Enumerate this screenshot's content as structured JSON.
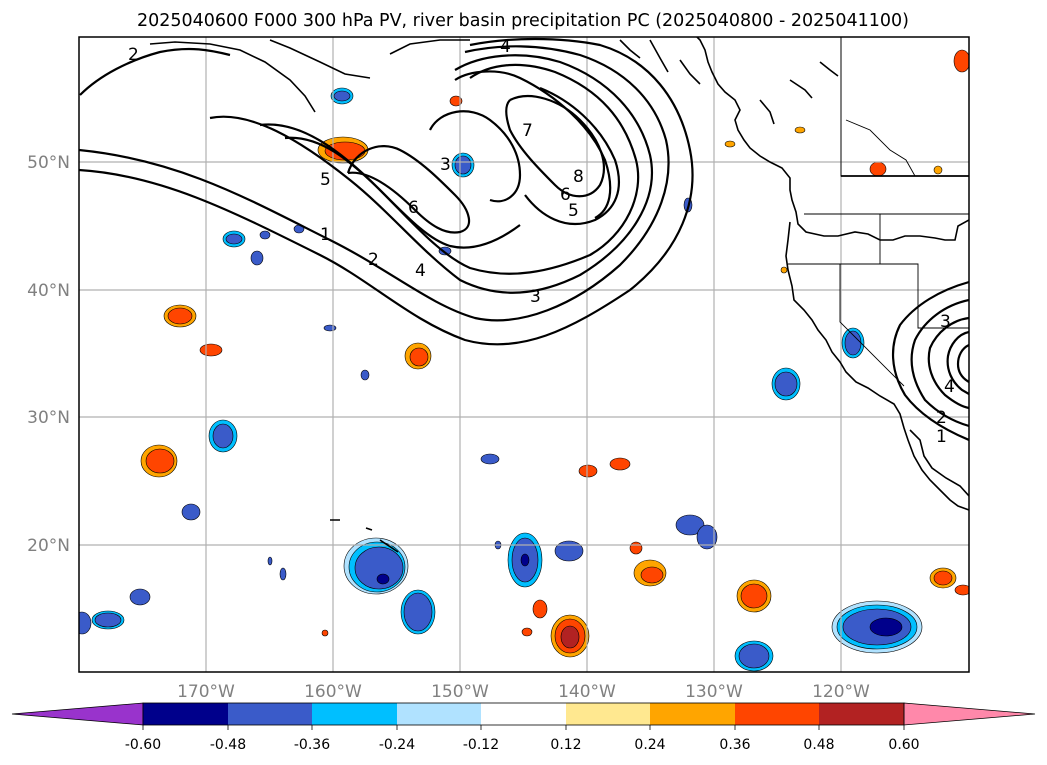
{
  "title": "2025040600 F000 300 hPa PV, river basin precipitation PC (2025040800 - 2025041100)",
  "map": {
    "lon_range": [
      -180,
      -110
    ],
    "lat_range": [
      10,
      60
    ],
    "lat_ticks": [
      {
        "value": 50,
        "label": "50°N"
      },
      {
        "value": 40,
        "label": "40°N"
      },
      {
        "value": 30,
        "label": "30°N"
      },
      {
        "value": 20,
        "label": "20°N"
      }
    ],
    "lon_ticks": [
      {
        "value": -170,
        "label": "170°W"
      },
      {
        "value": -160,
        "label": "160°W"
      },
      {
        "value": -150,
        "label": "150°W"
      },
      {
        "value": -140,
        "label": "140°W"
      },
      {
        "value": -130,
        "label": "130°W"
      },
      {
        "value": -120,
        "label": "120°W"
      }
    ]
  },
  "contour_labels": [
    "2",
    "4",
    "7",
    "8",
    "6",
    "5",
    "3",
    "5",
    "6",
    "1",
    "2",
    "4",
    "3",
    "3",
    "4",
    "2",
    "1"
  ],
  "colorbar": {
    "ticks": [
      "-0.60",
      "-0.48",
      "-0.36",
      "-0.24",
      "-0.12",
      "0.12",
      "0.24",
      "0.36",
      "0.48",
      "0.60"
    ],
    "colors": {
      "under": "#9933cc",
      "bins": [
        "#00008b",
        "#3a5bc9",
        "#00bfff",
        "#b0e2ff",
        "#ffffff",
        "#ffe890",
        "#ffa500",
        "#ff4500",
        "#b22222"
      ],
      "over": "#ff88aa"
    }
  }
}
